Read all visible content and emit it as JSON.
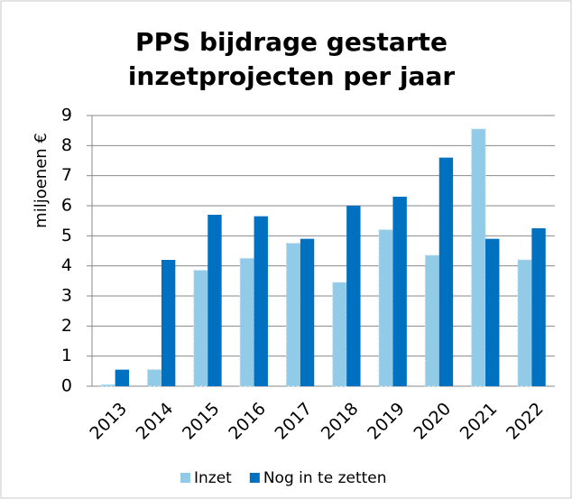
{
  "chart_data": {
    "type": "bar",
    "title": [
      "PPS bijdrage gestarte",
      "inzetprojecten per jaar"
    ],
    "ylabel": "miljoenen €",
    "categories": [
      "2013",
      "2014",
      "2015",
      "2016",
      "2017",
      "2018",
      "2019",
      "2020",
      "2021",
      "2022"
    ],
    "series": [
      {
        "name": "Inzet",
        "color": "#92cbe8",
        "values": [
          0.05,
          0.55,
          3.85,
          4.25,
          4.75,
          3.45,
          5.2,
          4.35,
          8.55,
          4.2
        ]
      },
      {
        "name": "Nog in te zetten",
        "color": "#0070c0",
        "values": [
          0.55,
          4.2,
          5.7,
          5.65,
          4.9,
          6.0,
          6.3,
          7.6,
          4.9,
          5.25
        ]
      }
    ],
    "ylim": [
      0,
      9
    ],
    "yticks": [
      0,
      1,
      2,
      3,
      4,
      5,
      6,
      7,
      8,
      9
    ],
    "grid": true,
    "legend": "bottom"
  }
}
